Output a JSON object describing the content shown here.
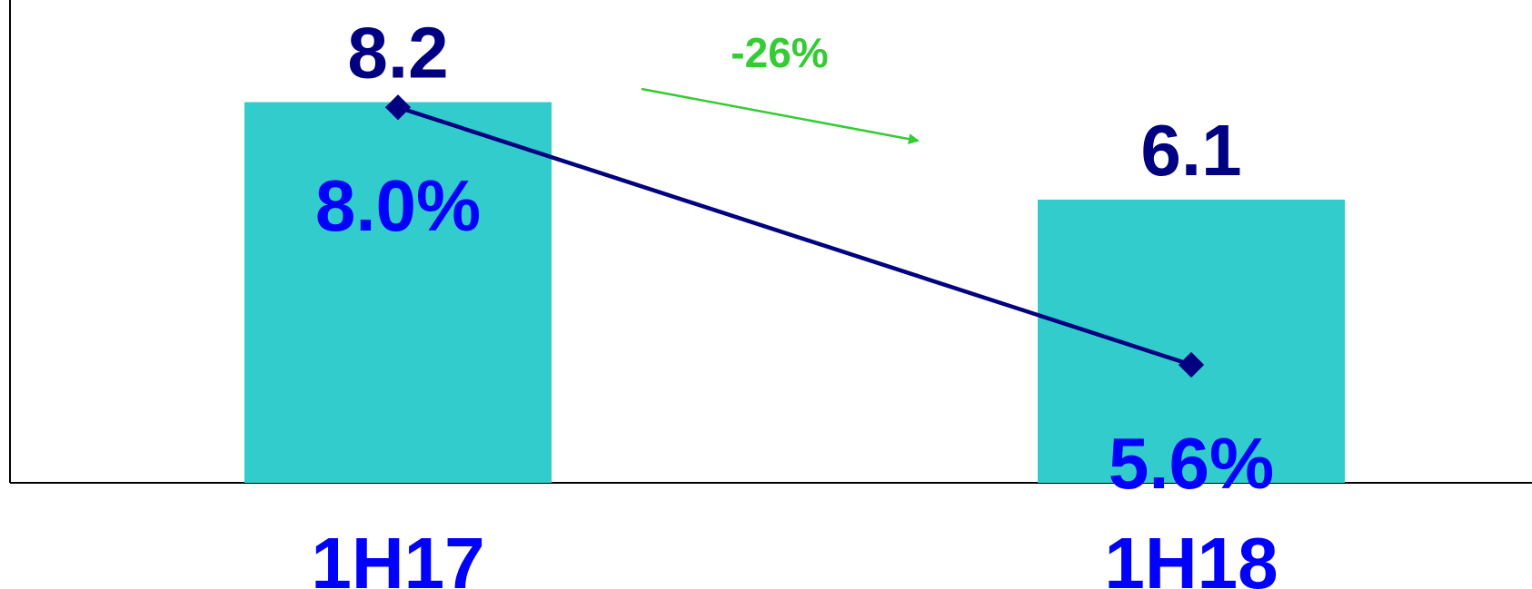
{
  "chart_data": {
    "type": "bar",
    "categories": [
      "1H17",
      "1H18"
    ],
    "series": [
      {
        "type": "bar",
        "values": [
          8.2,
          6.1
        ],
        "labels": [
          "8.2",
          "6.1"
        ],
        "color": "#33CCCC"
      },
      {
        "type": "line",
        "values": [
          8.0,
          5.6
        ],
        "labels": [
          "8.0%",
          "5.6%"
        ],
        "color": "#000080"
      }
    ],
    "annotations": [
      {
        "text": "-26%",
        "color": "#33CC33"
      }
    ],
    "colors": {
      "value_label": "#000080",
      "percent_label": "#0000FF",
      "category_label": "#0000FF",
      "axis": "#000000"
    },
    "bar_ylim": [
      0,
      10.4
    ],
    "line_ylim": [
      4.5,
      9.0
    ],
    "grid": false,
    "legend": "none"
  }
}
